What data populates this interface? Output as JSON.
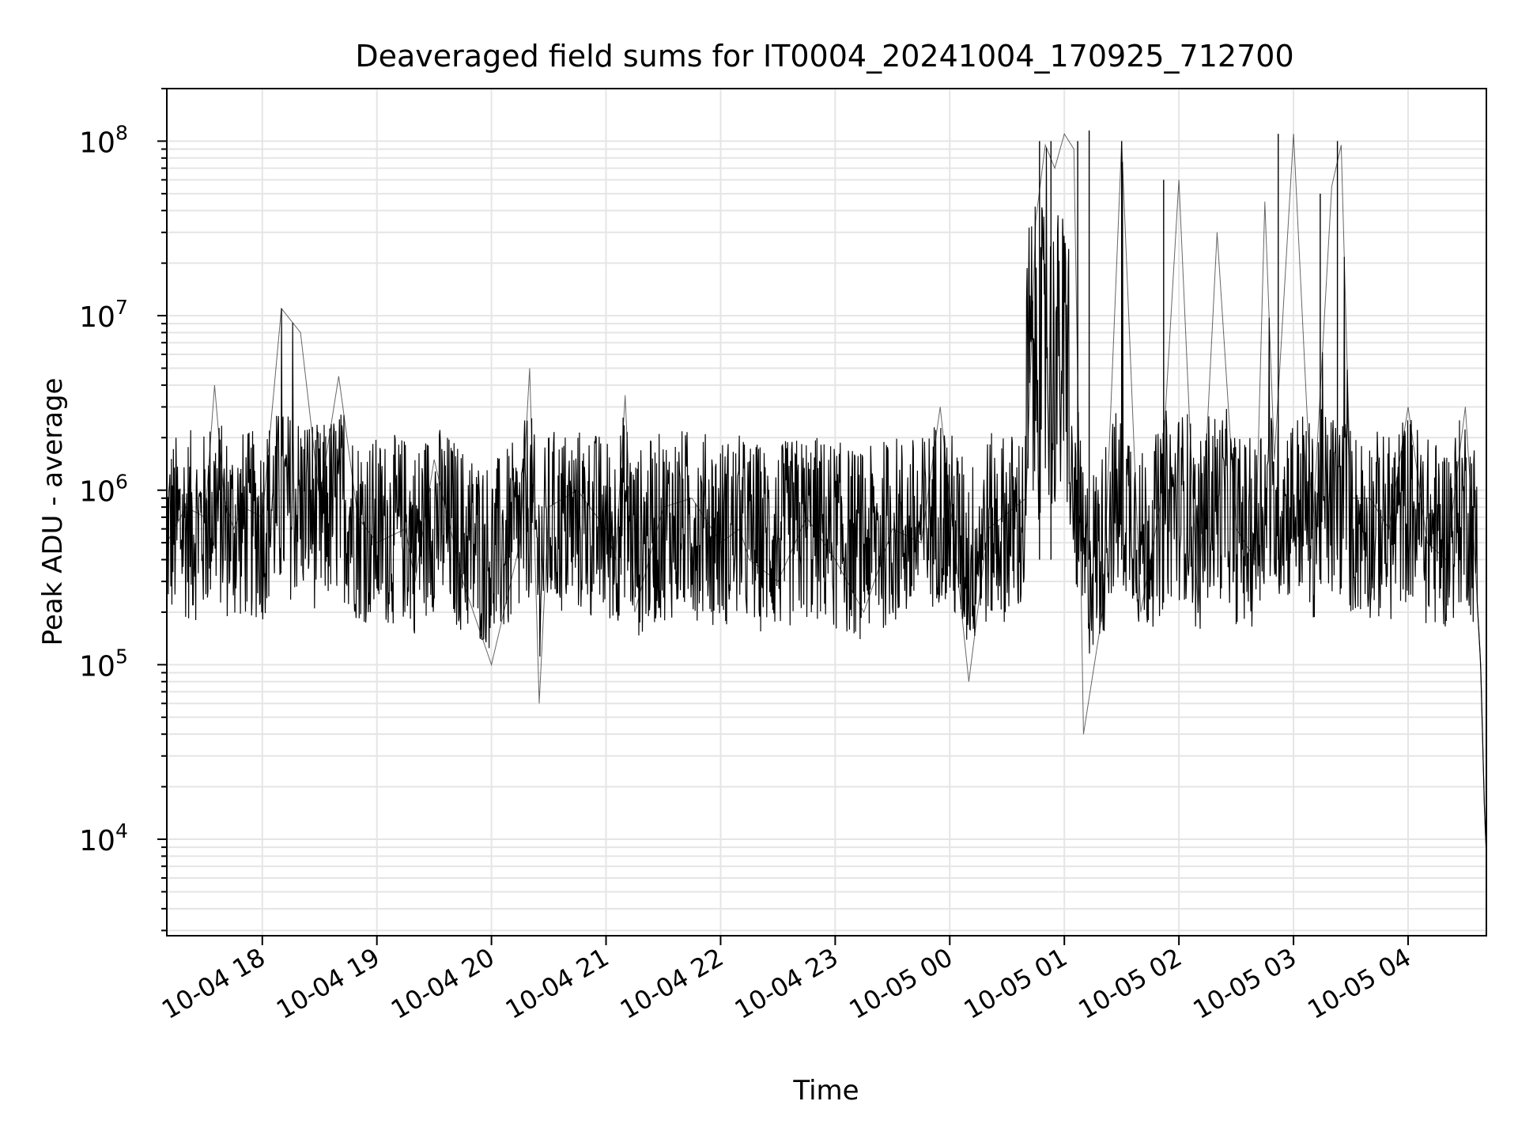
{
  "chart_data": {
    "type": "line",
    "title": "Deaveraged field sums for IT0004_20241004_170925_712700",
    "xlabel": "Time",
    "ylabel": "Peak ADU - average",
    "yscale": "log",
    "ylim": [
      2800,
      200000000
    ],
    "xlim": [
      "2024-10-04 17:10",
      "2024-10-05 04:41"
    ],
    "grid": true,
    "line_color": "#000000",
    "grid_color": "#e5e5e5",
    "x_ticks": [
      {
        "t": "2024-10-04 18:00",
        "label": "10-04 18"
      },
      {
        "t": "2024-10-04 19:00",
        "label": "10-04 19"
      },
      {
        "t": "2024-10-04 20:00",
        "label": "10-04 20"
      },
      {
        "t": "2024-10-04 21:00",
        "label": "10-04 21"
      },
      {
        "t": "2024-10-04 22:00",
        "label": "10-04 22"
      },
      {
        "t": "2024-10-04 23:00",
        "label": "10-04 23"
      },
      {
        "t": "2024-10-05 00:00",
        "label": "10-05 00"
      },
      {
        "t": "2024-10-05 01:00",
        "label": "10-05 01"
      },
      {
        "t": "2024-10-05 02:00",
        "label": "10-05 02"
      },
      {
        "t": "2024-10-05 03:00",
        "label": "10-05 03"
      },
      {
        "t": "2024-10-05 04:00",
        "label": "10-05 04"
      }
    ],
    "y_ticks": [
      {
        "v": 10000,
        "base": "10",
        "exp": "4"
      },
      {
        "v": 100000,
        "base": "10",
        "exp": "5"
      },
      {
        "v": 1000000,
        "base": "10",
        "exp": "6"
      },
      {
        "v": 10000000,
        "base": "10",
        "exp": "7"
      },
      {
        "v": 100000000,
        "base": "10",
        "exp": "8"
      }
    ],
    "series": [
      {
        "x": [
          "2024-10-04 17:10",
          "2024-10-04 17:20",
          "2024-10-04 17:30",
          "2024-10-04 17:35",
          "2024-10-04 17:40",
          "2024-10-04 17:45",
          "2024-10-04 17:50",
          "2024-10-04 18:00",
          "2024-10-04 18:10",
          "2024-10-04 18:20",
          "2024-10-04 18:30",
          "2024-10-04 18:40",
          "2024-10-04 18:50",
          "2024-10-04 19:00",
          "2024-10-04 19:15",
          "2024-10-04 19:20",
          "2024-10-04 19:30",
          "2024-10-04 19:45",
          "2024-10-04 20:00",
          "2024-10-04 20:15",
          "2024-10-04 20:20",
          "2024-10-04 20:25",
          "2024-10-04 20:30",
          "2024-10-04 20:45",
          "2024-10-04 21:00",
          "2024-10-04 21:05",
          "2024-10-04 21:10",
          "2024-10-04 21:15",
          "2024-10-04 21:30",
          "2024-10-04 21:45",
          "2024-10-04 22:00",
          "2024-10-04 22:10",
          "2024-10-04 22:15",
          "2024-10-04 22:30",
          "2024-10-04 22:45",
          "2024-10-04 23:00",
          "2024-10-04 23:15",
          "2024-10-04 23:30",
          "2024-10-04 23:45",
          "2024-10-04 23:55",
          "2024-10-05 00:10",
          "2024-10-05 00:20",
          "2024-10-05 00:40",
          "2024-10-05 00:45",
          "2024-10-05 00:50",
          "2024-10-05 00:55",
          "2024-10-05 01:00",
          "2024-10-05 01:05",
          "2024-10-05 01:10",
          "2024-10-05 01:20",
          "2024-10-05 01:30",
          "2024-10-05 01:40",
          "2024-10-05 01:50",
          "2024-10-05 02:00",
          "2024-10-05 02:10",
          "2024-10-05 02:20",
          "2024-10-05 02:30",
          "2024-10-05 02:40",
          "2024-10-05 02:45",
          "2024-10-05 02:50",
          "2024-10-05 03:00",
          "2024-10-05 03:10",
          "2024-10-05 03:20",
          "2024-10-05 03:25",
          "2024-10-05 03:30",
          "2024-10-05 03:40",
          "2024-10-05 03:50",
          "2024-10-05 04:00",
          "2024-10-05 04:10",
          "2024-10-05 04:20",
          "2024-10-05 04:30",
          "2024-10-05 04:35",
          "2024-10-05 04:38",
          "2024-10-05 04:40",
          "2024-10-05 04:41"
        ],
        "y": [
          500000,
          800000,
          700000,
          4000000,
          900000,
          600000,
          800000,
          700000,
          11000000,
          8000000,
          900000,
          4500000,
          700000,
          500000,
          600000,
          300000,
          1500000,
          300000,
          100000,
          500000,
          5000000,
          60000,
          800000,
          1000000,
          600000,
          400000,
          3500000,
          200000,
          800000,
          900000,
          500000,
          600000,
          400000,
          300000,
          700000,
          400000,
          200000,
          600000,
          500000,
          3000000,
          80000,
          600000,
          900000,
          35000000,
          95000000,
          70000000,
          110000000,
          90000000,
          40000,
          200000,
          100000000,
          200000,
          800000,
          60000000,
          200000,
          30000000,
          600000,
          400000,
          45000000,
          1500000,
          110000000,
          600000,
          55000000,
          95000000,
          900000,
          900000,
          600000,
          3000000,
          500000,
          400000,
          3000000,
          400000,
          100000,
          15000,
          8000
        ]
      }
    ],
    "spikes": [
      {
        "t": "2024-10-05 00:47",
        "v": 100000000
      },
      {
        "t": "2024-10-05 00:53",
        "v": 100000000
      },
      {
        "t": "2024-10-05 01:07",
        "v": 100000000
      },
      {
        "t": "2024-10-05 01:13",
        "v": 115000000
      },
      {
        "t": "2024-10-05 01:30",
        "v": 100000000
      },
      {
        "t": "2024-10-05 01:52",
        "v": 60000000
      },
      {
        "t": "2024-10-05 02:52",
        "v": 110000000
      },
      {
        "t": "2024-10-05 03:23",
        "v": 100000000
      },
      {
        "t": "2024-10-05 03:14",
        "v": 50000000
      }
    ]
  }
}
